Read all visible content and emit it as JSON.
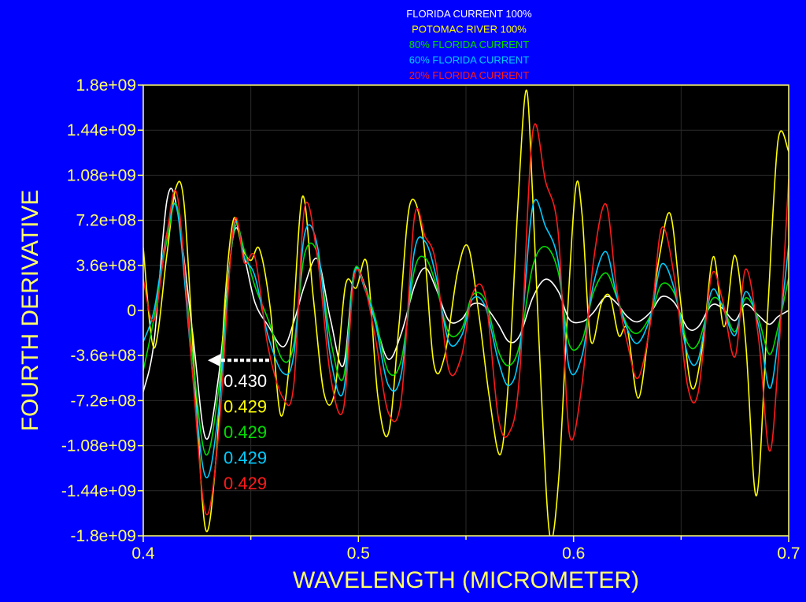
{
  "chart_data": {
    "type": "line",
    "title": "",
    "xlabel": "WAVELENGTH (MICROMETER)",
    "ylabel": "FOURTH DERIVATIVE",
    "xlim": [
      0.4,
      0.7
    ],
    "ylim": [
      -1800000000,
      1800000000
    ],
    "x_ticks": [
      0.4,
      0.5,
      0.6,
      0.7
    ],
    "x_tick_labels": [
      "0.4",
      "0.5",
      "0.6",
      "0.7"
    ],
    "y_ticks": [
      1800000000,
      1440000000,
      1080000000,
      720000000,
      360000000,
      0,
      -360000000,
      -720000000,
      -1080000000,
      -1440000000,
      -1800000000
    ],
    "y_tick_labels": [
      "1.8e+09",
      "1.44e+09",
      "1.08e+09",
      "7.2e+08",
      "3.6e+08",
      "0",
      "-3.6e+08",
      "-7.2e+08",
      "-1.08e+09",
      "-1.44e+09",
      "-1.8e+09"
    ],
    "grid": true,
    "legend_position": "top-center",
    "colors": {
      "background": "#0000ff",
      "plot_background": "#000000",
      "axis": "#ffff66",
      "grid": "#2a2a2a"
    },
    "series": [
      {
        "name": "FLORIDA CURRENT 100%",
        "color": "#ffffff",
        "x": [
          0.4,
          0.405,
          0.411,
          0.416,
          0.423,
          0.429,
          0.435,
          0.442,
          0.447,
          0.452,
          0.458,
          0.465,
          0.47,
          0.475,
          0.481,
          0.487,
          0.493,
          0.498,
          0.503,
          0.508,
          0.514,
          0.52,
          0.526,
          0.531,
          0.536,
          0.542,
          0.548,
          0.553,
          0.559,
          0.565,
          0.57,
          0.575,
          0.581,
          0.587,
          0.593,
          0.598,
          0.604,
          0.609,
          0.615,
          0.62,
          0.625,
          0.63,
          0.636,
          0.641,
          0.647,
          0.653,
          0.658,
          0.664,
          0.669,
          0.675,
          0.68,
          0.686,
          0.691,
          0.695,
          0.7
        ],
        "y": [
          -650000000,
          -250000000,
          880000000,
          790000000,
          -190000000,
          -1020000000,
          -530000000,
          610000000,
          420000000,
          60000000,
          -120000000,
          -290000000,
          -90000000,
          200000000,
          410000000,
          -70000000,
          -440000000,
          310000000,
          200000000,
          -100000000,
          -390000000,
          -180000000,
          190000000,
          340000000,
          180000000,
          -80000000,
          -70000000,
          50000000,
          30000000,
          -110000000,
          -250000000,
          -200000000,
          100000000,
          250000000,
          150000000,
          -70000000,
          -90000000,
          -20000000,
          110000000,
          60000000,
          -50000000,
          -90000000,
          -10000000,
          110000000,
          60000000,
          -140000000,
          -130000000,
          40000000,
          20000000,
          -80000000,
          50000000,
          -40000000,
          -110000000,
          -50000000,
          0
        ]
      },
      {
        "name": "POTOMAC RIVER 100%",
        "color": "#ffff00",
        "x": [
          0.4,
          0.405,
          0.411,
          0.415,
          0.419,
          0.424,
          0.429,
          0.434,
          0.438,
          0.442,
          0.446,
          0.45,
          0.454,
          0.459,
          0.464,
          0.469,
          0.474,
          0.479,
          0.484,
          0.489,
          0.494,
          0.499,
          0.504,
          0.509,
          0.514,
          0.519,
          0.524,
          0.53,
          0.535,
          0.54,
          0.546,
          0.551,
          0.556,
          0.561,
          0.566,
          0.57,
          0.574,
          0.578,
          0.581,
          0.585,
          0.589,
          0.593,
          0.597,
          0.601,
          0.604,
          0.608,
          0.613,
          0.617,
          0.621,
          0.625,
          0.63,
          0.635,
          0.64,
          0.645,
          0.65,
          0.655,
          0.66,
          0.665,
          0.67,
          0.675,
          0.68,
          0.685,
          0.69,
          0.695,
          0.7
        ],
        "y": [
          500000000,
          -300000000,
          450000000,
          970000000,
          850000000,
          -550000000,
          -1750000000,
          -1150000000,
          90000000,
          730000000,
          500000000,
          400000000,
          490000000,
          20000000,
          -840000000,
          -230000000,
          910000000,
          110000000,
          -660000000,
          -650000000,
          200000000,
          180000000,
          370000000,
          -680000000,
          -980000000,
          -90000000,
          850000000,
          590000000,
          -420000000,
          -370000000,
          300000000,
          510000000,
          -30000000,
          -710000000,
          -1150000000,
          -500000000,
          800000000,
          1760000000,
          920000000,
          -650000000,
          -1800000000,
          -1370000000,
          -80000000,
          980000000,
          760000000,
          -240000000,
          60000000,
          110000000,
          -200000000,
          -150000000,
          -700000000,
          -170000000,
          440000000,
          770000000,
          40000000,
          -620000000,
          -280000000,
          430000000,
          -130000000,
          440000000,
          -250000000,
          -1480000000,
          -80000000,
          1350000000,
          1270000000
        ]
      },
      {
        "name": "80% FLORIDA CURRENT",
        "color": "#00dd00",
        "x": [
          0.4,
          0.405,
          0.411,
          0.416,
          0.423,
          0.429,
          0.435,
          0.442,
          0.447,
          0.452,
          0.458,
          0.465,
          0.47,
          0.475,
          0.481,
          0.487,
          0.493,
          0.498,
          0.503,
          0.508,
          0.514,
          0.52,
          0.526,
          0.531,
          0.536,
          0.542,
          0.548,
          0.553,
          0.559,
          0.565,
          0.57,
          0.575,
          0.581,
          0.587,
          0.593,
          0.598,
          0.604,
          0.609,
          0.615,
          0.62,
          0.625,
          0.63,
          0.636,
          0.641,
          0.647,
          0.653,
          0.658,
          0.664,
          0.669,
          0.675,
          0.68,
          0.686,
          0.691,
          0.695,
          0.7
        ],
        "y": [
          -480000000,
          -60000000,
          560000000,
          810000000,
          -390000000,
          -1150000000,
          -630000000,
          620000000,
          480000000,
          190000000,
          -70000000,
          -400000000,
          -270000000,
          450000000,
          450000000,
          -230000000,
          -540000000,
          310000000,
          190000000,
          -70000000,
          -490000000,
          -390000000,
          320000000,
          420000000,
          210000000,
          -180000000,
          -150000000,
          120000000,
          80000000,
          -320000000,
          -440000000,
          -270000000,
          350000000,
          510000000,
          300000000,
          -270000000,
          -240000000,
          130000000,
          300000000,
          110000000,
          -120000000,
          -180000000,
          -30000000,
          210000000,
          130000000,
          -260000000,
          -260000000,
          80000000,
          50000000,
          -170000000,
          100000000,
          -70000000,
          -350000000,
          -140000000,
          260000000
        ]
      },
      {
        "name": "60% FLORIDA CURRENT",
        "color": "#00ccff",
        "x": [
          0.4,
          0.405,
          0.411,
          0.416,
          0.423,
          0.429,
          0.435,
          0.442,
          0.447,
          0.452,
          0.458,
          0.465,
          0.47,
          0.475,
          0.481,
          0.487,
          0.493,
          0.498,
          0.503,
          0.508,
          0.514,
          0.52,
          0.526,
          0.531,
          0.536,
          0.542,
          0.548,
          0.553,
          0.559,
          0.565,
          0.57,
          0.575,
          0.581,
          0.587,
          0.593,
          0.598,
          0.604,
          0.609,
          0.615,
          0.62,
          0.625,
          0.63,
          0.636,
          0.641,
          0.647,
          0.653,
          0.658,
          0.664,
          0.669,
          0.675,
          0.68,
          0.686,
          0.691,
          0.695,
          0.7
        ],
        "y": [
          -250000000,
          0,
          620000000,
          780000000,
          -510000000,
          -1330000000,
          -800000000,
          650000000,
          420000000,
          270000000,
          -200000000,
          -500000000,
          -350000000,
          610000000,
          510000000,
          -370000000,
          -650000000,
          290000000,
          170000000,
          -110000000,
          -600000000,
          -500000000,
          470000000,
          550000000,
          280000000,
          -250000000,
          -200000000,
          90000000,
          30000000,
          -400000000,
          -600000000,
          -320000000,
          830000000,
          670000000,
          380000000,
          -460000000,
          -360000000,
          190000000,
          470000000,
          120000000,
          -150000000,
          -260000000,
          -30000000,
          370000000,
          160000000,
          -350000000,
          -390000000,
          150000000,
          40000000,
          -200000000,
          150000000,
          -120000000,
          -620000000,
          -250000000,
          520000000
        ]
      },
      {
        "name": "20% FLORIDA CURRENT",
        "color": "#ff1a1a",
        "x": [
          0.4,
          0.405,
          0.411,
          0.416,
          0.423,
          0.429,
          0.435,
          0.442,
          0.447,
          0.452,
          0.458,
          0.465,
          0.47,
          0.475,
          0.481,
          0.487,
          0.493,
          0.498,
          0.503,
          0.508,
          0.514,
          0.52,
          0.526,
          0.531,
          0.536,
          0.542,
          0.548,
          0.553,
          0.559,
          0.565,
          0.57,
          0.575,
          0.581,
          0.587,
          0.593,
          0.598,
          0.604,
          0.609,
          0.615,
          0.62,
          0.625,
          0.63,
          0.636,
          0.641,
          0.647,
          0.653,
          0.658,
          0.664,
          0.669,
          0.675,
          0.68,
          0.686,
          0.691,
          0.695,
          0.7
        ],
        "y": [
          250000000,
          -80000000,
          620000000,
          900000000,
          -530000000,
          -1620000000,
          -990000000,
          680000000,
          380000000,
          420000000,
          -290000000,
          -700000000,
          -590000000,
          820000000,
          420000000,
          -520000000,
          -790000000,
          260000000,
          180000000,
          -230000000,
          -820000000,
          -700000000,
          740000000,
          590000000,
          380000000,
          -470000000,
          -360000000,
          130000000,
          110000000,
          -850000000,
          -980000000,
          -500000000,
          1420000000,
          1030000000,
          600000000,
          -980000000,
          -580000000,
          360000000,
          850000000,
          180000000,
          -260000000,
          -540000000,
          -70000000,
          660000000,
          250000000,
          -600000000,
          -650000000,
          270000000,
          100000000,
          -370000000,
          330000000,
          -220000000,
          -1120000000,
          -440000000,
          1050000000
        ]
      }
    ],
    "annotations": [
      {
        "text": "0.430",
        "color": "#ffffff"
      },
      {
        "text": "0.429",
        "color": "#ffff00"
      },
      {
        "text": "0.429",
        "color": "#00dd00"
      },
      {
        "text": "0.429",
        "color": "#00ccff"
      },
      {
        "text": "0.429",
        "color": "#ff1a1a"
      }
    ]
  }
}
